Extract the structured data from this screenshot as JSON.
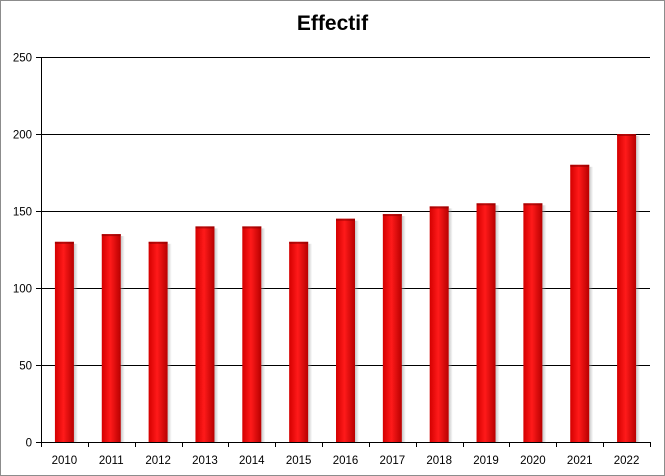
{
  "chart_data": {
    "type": "bar",
    "title": "Effectif",
    "categories": [
      "2010",
      "2011",
      "2012",
      "2013",
      "2014",
      "2015",
      "2016",
      "2017",
      "2018",
      "2019",
      "2020",
      "2021",
      "2022"
    ],
    "values": [
      130,
      135,
      130,
      140,
      140,
      130,
      145,
      148,
      153,
      155,
      155,
      180,
      200
    ],
    "ylim": [
      0,
      250
    ],
    "yticks": [
      0,
      50,
      100,
      150,
      200,
      250
    ],
    "grid": true,
    "legend": "none",
    "colors": {
      "bar": "#ff0000",
      "bar_dark": "#c00000",
      "grid": "#000000"
    }
  }
}
